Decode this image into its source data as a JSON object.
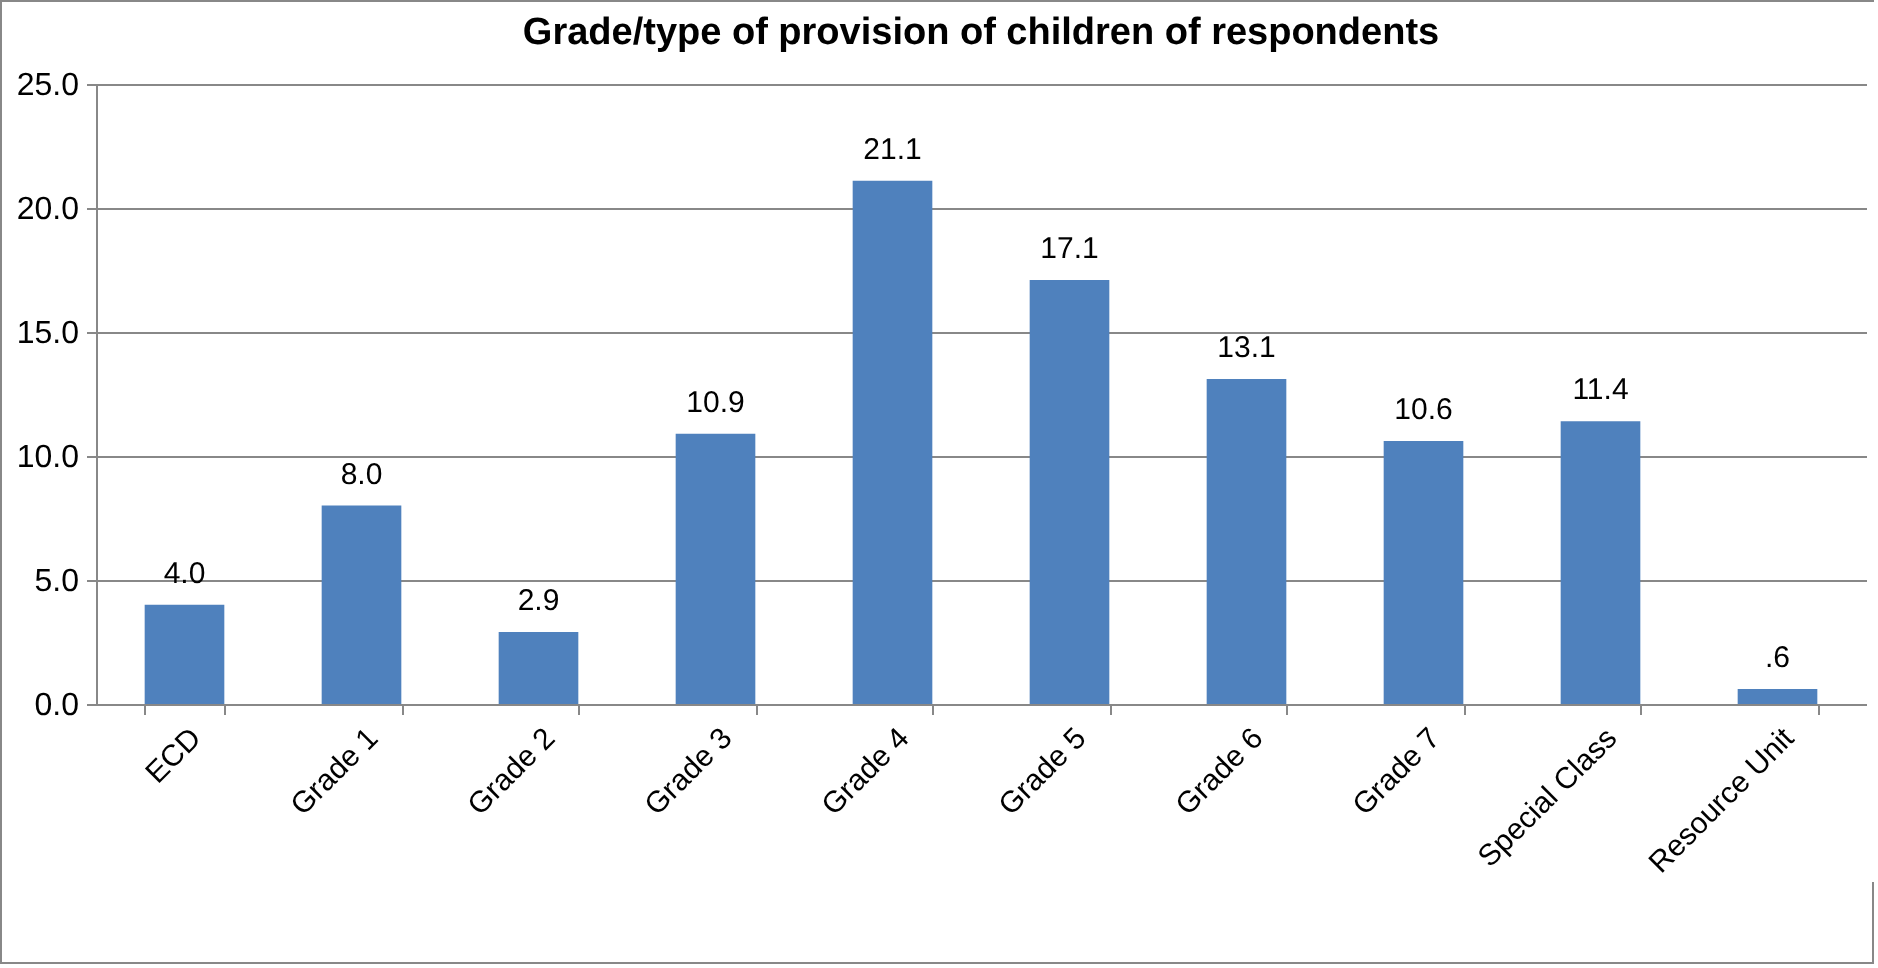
{
  "chart_data": {
    "type": "bar",
    "title": "Grade/type of provision of children of respondents",
    "categories": [
      "ECD",
      "Grade 1",
      "Grade 2",
      "Grade 3",
      "Grade 4",
      "Grade 5",
      "Grade 6",
      "Grade 7",
      "Special Class",
      "Resource Unit"
    ],
    "values": [
      4.0,
      8.0,
      2.9,
      10.9,
      21.1,
      17.1,
      13.1,
      10.6,
      11.4,
      0.6
    ],
    "value_labels": [
      "4.0",
      "8.0",
      "2.9",
      "10.9",
      "21.1",
      "17.1",
      "13.1",
      "10.6",
      "11.4",
      ".6"
    ],
    "color": "#4f81bd",
    "ylim": [
      0,
      25
    ],
    "yticks": [
      {
        "value": 0,
        "label": "0.0"
      },
      {
        "value": 5,
        "label": "5.0"
      },
      {
        "value": 10,
        "label": "10.0"
      },
      {
        "value": 15,
        "label": "15.0"
      },
      {
        "value": 20,
        "label": "20.0"
      },
      {
        "value": 25,
        "label": "25.0"
      }
    ],
    "grid": "y"
  }
}
